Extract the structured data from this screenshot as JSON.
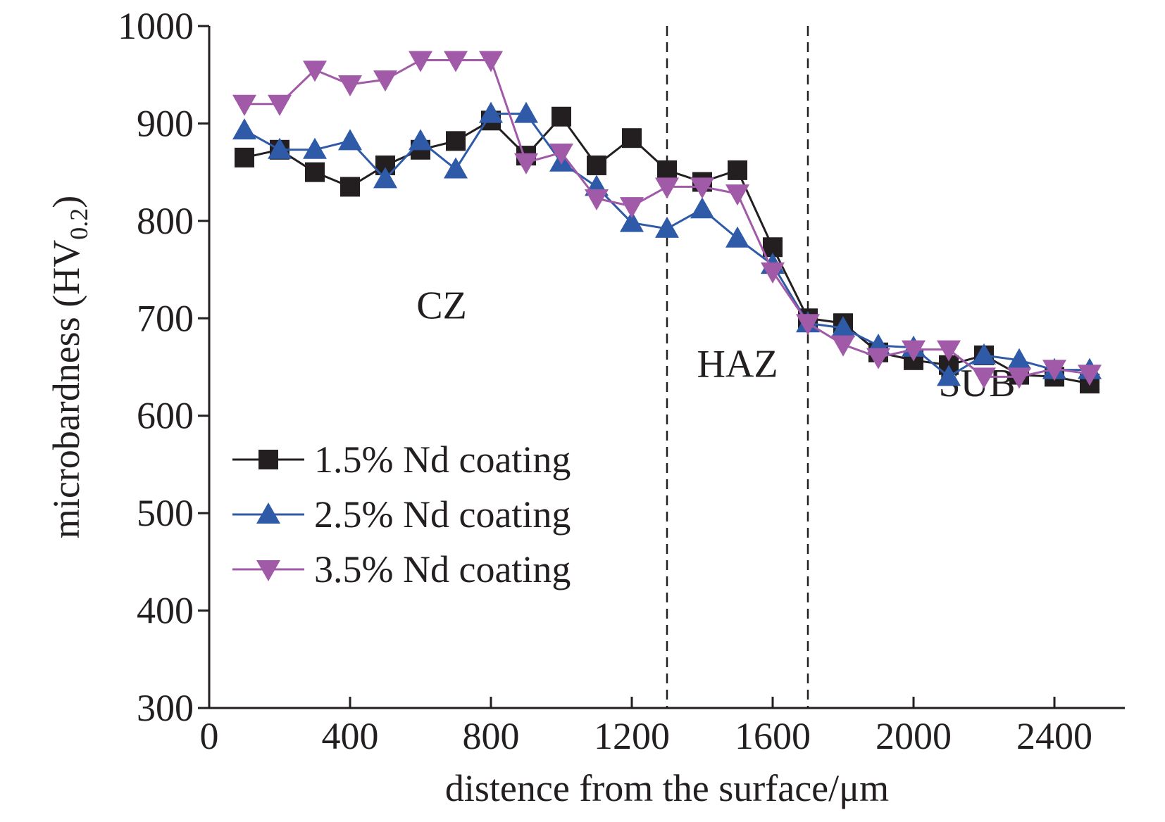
{
  "chart_data": {
    "type": "line",
    "xlabel": "distence from the surface/μm",
    "ylabel": {
      "main": "microbardness (HV",
      "sub": "0.2",
      "close": ")"
    },
    "xlim": [
      0,
      2600
    ],
    "ylim": [
      300,
      1000
    ],
    "xticks": [
      0,
      400,
      800,
      1200,
      1600,
      2000,
      2400
    ],
    "yticks": [
      300,
      400,
      500,
      600,
      700,
      800,
      900,
      1000
    ],
    "xtick_labels": [
      "0",
      "400",
      "800",
      "1200",
      "1600",
      "2000",
      "2400"
    ],
    "ytick_labels": [
      "300",
      "400",
      "500",
      "600",
      "700",
      "800",
      "900",
      "1000"
    ],
    "zone_boundaries": [
      1300,
      1700
    ],
    "zones": [
      {
        "label": "CZ",
        "x": 660,
        "y": 700
      },
      {
        "label": "HAZ",
        "x": 1500,
        "y": 640
      },
      {
        "label": "SUB",
        "x": 2180,
        "y": 620
      }
    ],
    "legend_position": "lower-left",
    "grid": false,
    "series": [
      {
        "name": "1.5% Nd coating",
        "marker": "square",
        "color": "#231f20",
        "x": [
          100,
          200,
          300,
          400,
          500,
          600,
          700,
          800,
          900,
          1000,
          1100,
          1200,
          1300,
          1400,
          1500,
          1600,
          1700,
          1800,
          1900,
          2000,
          2100,
          2200,
          2300,
          2400,
          2500
        ],
        "y": [
          865,
          873,
          850,
          835,
          857,
          873,
          882,
          903,
          867,
          907,
          857,
          885,
          852,
          840,
          852,
          773,
          700,
          695,
          665,
          657,
          652,
          662,
          642,
          640,
          633
        ]
      },
      {
        "name": "2.5% Nd coating",
        "marker": "triangle-up",
        "color": "#2e5aa8",
        "x": [
          100,
          200,
          300,
          400,
          500,
          600,
          700,
          800,
          900,
          1000,
          1100,
          1200,
          1300,
          1400,
          1500,
          1600,
          1700,
          1800,
          1900,
          2000,
          2100,
          2200,
          2300,
          2400,
          2500
        ],
        "y": [
          893,
          873,
          873,
          882,
          843,
          882,
          853,
          910,
          910,
          860,
          835,
          798,
          792,
          812,
          782,
          755,
          695,
          690,
          672,
          670,
          640,
          662,
          657,
          647,
          647
        ]
      },
      {
        "name": "3.5% Nd coating",
        "marker": "triangle-down",
        "color": "#a05aa8",
        "x": [
          100,
          200,
          300,
          400,
          500,
          600,
          700,
          800,
          900,
          1000,
          1100,
          1200,
          1300,
          1400,
          1500,
          1600,
          1700,
          1800,
          1900,
          2000,
          2100,
          2200,
          2300,
          2400,
          2500
        ],
        "y": [
          920,
          920,
          955,
          940,
          945,
          965,
          965,
          965,
          860,
          870,
          823,
          815,
          835,
          835,
          828,
          748,
          695,
          673,
          660,
          668,
          668,
          640,
          640,
          648,
          643
        ]
      }
    ]
  }
}
